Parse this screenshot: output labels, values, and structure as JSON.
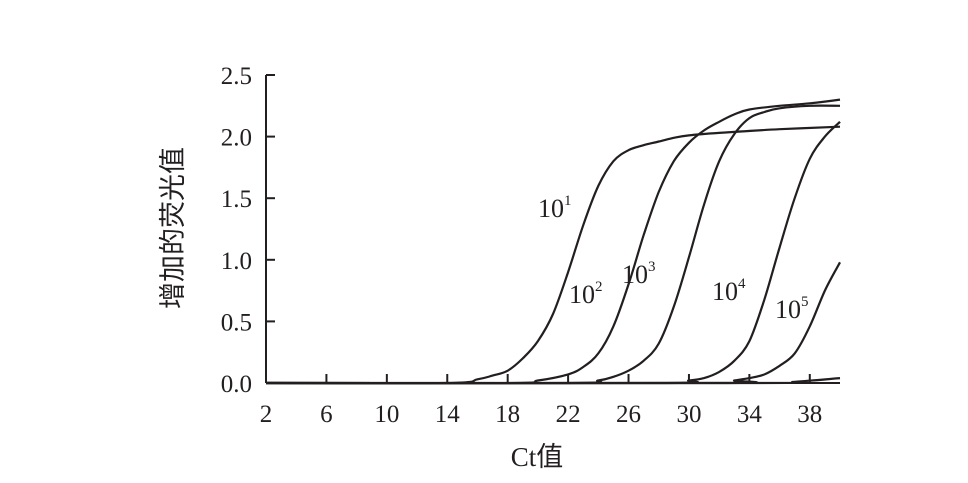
{
  "chart_data": {
    "type": "line",
    "title": "",
    "xlabel": "Ct值",
    "ylabel": "增加的荧光值",
    "xlim": [
      2,
      40
    ],
    "ylim": [
      0,
      2.5
    ],
    "x_ticks": [
      "2",
      "6",
      "10",
      "14",
      "18",
      "22",
      "26",
      "30",
      "34",
      "38"
    ],
    "y_ticks": [
      "0.0",
      "0.5",
      "1.0",
      "1.5",
      "2.0",
      "2.5"
    ],
    "grid": false,
    "legend": "none",
    "line_color": "#231f20",
    "series": [
      {
        "name": "101",
        "label_base": "10",
        "label_exp": "1",
        "points": [
          [
            2,
            0
          ],
          [
            14,
            0
          ],
          [
            16,
            0.03
          ],
          [
            17,
            0.06
          ],
          [
            18,
            0.1
          ],
          [
            19,
            0.2
          ],
          [
            20,
            0.34
          ],
          [
            21,
            0.56
          ],
          [
            22,
            0.9
          ],
          [
            23,
            1.28
          ],
          [
            24,
            1.6
          ],
          [
            25,
            1.8
          ],
          [
            26,
            1.89
          ],
          [
            27,
            1.93
          ],
          [
            28,
            1.96
          ],
          [
            29,
            1.99
          ],
          [
            30,
            2.01
          ],
          [
            32,
            2.03
          ],
          [
            36,
            2.06
          ],
          [
            40,
            2.08
          ]
        ]
      },
      {
        "name": "102",
        "label_base": "10",
        "label_exp": "2",
        "points": [
          [
            2,
            0
          ],
          [
            18,
            0
          ],
          [
            20,
            0.02
          ],
          [
            22,
            0.07
          ],
          [
            23,
            0.13
          ],
          [
            24,
            0.24
          ],
          [
            25,
            0.46
          ],
          [
            26,
            0.8
          ],
          [
            27,
            1.2
          ],
          [
            28,
            1.55
          ],
          [
            29,
            1.8
          ],
          [
            30,
            1.95
          ],
          [
            31,
            2.05
          ],
          [
            32,
            2.12
          ],
          [
            33,
            2.18
          ],
          [
            34,
            2.22
          ],
          [
            36,
            2.25
          ],
          [
            38,
            2.27
          ],
          [
            40,
            2.3
          ]
        ]
      },
      {
        "name": "103",
        "label_base": "10",
        "label_exp": "3",
        "points": [
          [
            2,
            0
          ],
          [
            22,
            0
          ],
          [
            24,
            0.02
          ],
          [
            25,
            0.05
          ],
          [
            26,
            0.1
          ],
          [
            27,
            0.18
          ],
          [
            28,
            0.32
          ],
          [
            29,
            0.62
          ],
          [
            30,
            1.02
          ],
          [
            31,
            1.45
          ],
          [
            32,
            1.8
          ],
          [
            33,
            2.02
          ],
          [
            34,
            2.15
          ],
          [
            35,
            2.2
          ],
          [
            36,
            2.23
          ],
          [
            38,
            2.25
          ],
          [
            40,
            2.25
          ]
        ]
      },
      {
        "name": "104",
        "label_base": "10",
        "label_exp": "4",
        "points": [
          [
            2,
            0
          ],
          [
            28,
            0
          ],
          [
            30,
            0.02
          ],
          [
            31,
            0.04
          ],
          [
            32,
            0.09
          ],
          [
            33,
            0.18
          ],
          [
            34,
            0.34
          ],
          [
            35,
            0.68
          ],
          [
            36,
            1.1
          ],
          [
            37,
            1.5
          ],
          [
            38,
            1.82
          ],
          [
            39,
            2.0
          ],
          [
            40,
            2.12
          ]
        ]
      },
      {
        "name": "105",
        "label_base": "10",
        "label_exp": "5",
        "points": [
          [
            2,
            0
          ],
          [
            32,
            0
          ],
          [
            33,
            0.02
          ],
          [
            34,
            0.04
          ],
          [
            35,
            0.07
          ],
          [
            36,
            0.14
          ],
          [
            37,
            0.24
          ],
          [
            38,
            0.46
          ],
          [
            39,
            0.75
          ],
          [
            40,
            0.98
          ]
        ]
      },
      {
        "name": "",
        "label_base": "",
        "label_exp": "",
        "points": [
          [
            2,
            0
          ],
          [
            34,
            0
          ],
          [
            37,
            0.01
          ],
          [
            40,
            0.04
          ]
        ]
      }
    ]
  }
}
